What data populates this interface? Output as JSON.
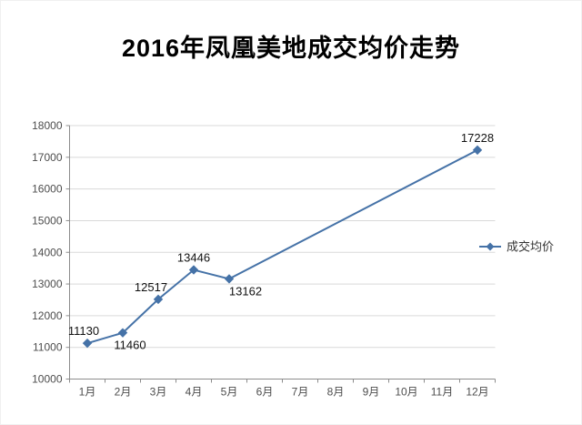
{
  "title": "2016年凤凰美地成交均价走势",
  "chart_data": {
    "type": "line",
    "title": "2016年凤凰美地成交均价走势",
    "categories": [
      "1月",
      "2月",
      "3月",
      "4月",
      "5月",
      "6月",
      "7月",
      "8月",
      "9月",
      "10月",
      "11月",
      "12月"
    ],
    "series": [
      {
        "name": "成交均价",
        "values": [
          11130,
          11460,
          12517,
          13446,
          13162,
          null,
          null,
          null,
          null,
          null,
          null,
          17228
        ]
      }
    ],
    "data_labels": [
      {
        "index": 0,
        "text": "11130",
        "position": "above",
        "dx": -4
      },
      {
        "index": 1,
        "text": "11460",
        "position": "below",
        "dx": 8
      },
      {
        "index": 2,
        "text": "12517",
        "position": "above",
        "dx": -8
      },
      {
        "index": 3,
        "text": "13446",
        "position": "above",
        "dx": 0
      },
      {
        "index": 4,
        "text": "13162",
        "position": "below",
        "dx": 18
      },
      {
        "index": 11,
        "text": "17228",
        "position": "above",
        "dx": 0
      }
    ],
    "ylim": [
      10000,
      18000
    ],
    "yticks": [
      10000,
      11000,
      12000,
      13000,
      14000,
      15000,
      16000,
      17000,
      18000
    ],
    "grid": true,
    "legend_position": "right",
    "line_color": "#4572a7",
    "marker": "diamond",
    "xlabel": "",
    "ylabel": ""
  }
}
